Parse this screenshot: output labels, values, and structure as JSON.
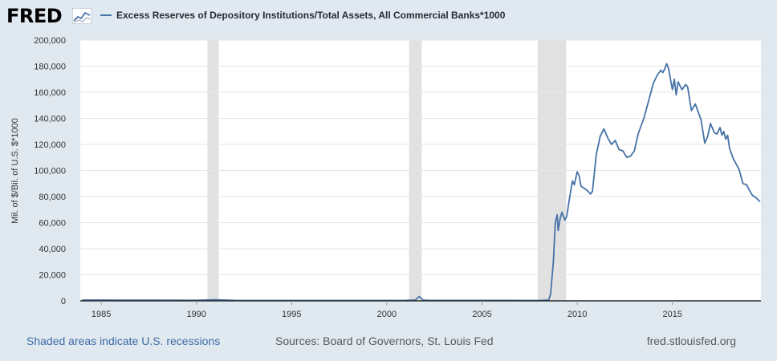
{
  "header": {
    "logo_text": "FRED",
    "series_title": "Excess Reserves of Depository Institutions/Total Assets, All Commercial Banks*1000"
  },
  "footer": {
    "recession_note": "Shaded areas indicate U.S. recessions",
    "sources": "Sources: Board of Governors, St. Louis Fed",
    "site": "fred.stlouisfed.org"
  },
  "colors": {
    "series": "#4572a7",
    "recession": "#e1e1e1",
    "background": "#e1e9f0",
    "plot": "#ffffff",
    "grid": "#e6e6e6"
  },
  "chart_data": {
    "type": "line",
    "ylabel": "Mil. of $/Bil. of U.S. $*1000",
    "xlim": [
      1983.9,
      2019.65
    ],
    "ylim": [
      0,
      200000
    ],
    "y_ticks": [
      0,
      20000,
      40000,
      60000,
      80000,
      100000,
      120000,
      140000,
      160000,
      180000,
      200000
    ],
    "y_tick_labels": [
      "0",
      "20,000",
      "40,000",
      "60,000",
      "80,000",
      "100,000",
      "120,000",
      "140,000",
      "160,000",
      "180,000",
      "200,000"
    ],
    "x_ticks": [
      1985,
      1990,
      1995,
      2000,
      2005,
      2010,
      2015
    ],
    "x_tick_labels": [
      "1985",
      "1990",
      "1995",
      "2000",
      "2005",
      "2010",
      "2015"
    ],
    "recessions": [
      [
        1990.58,
        1991.17
      ],
      [
        2001.17,
        2001.83
      ],
      [
        2007.92,
        2009.42
      ]
    ],
    "grid": "horizontal",
    "series": [
      {
        "x": [
          1984.0,
          1986.0,
          1988.0,
          1990.0,
          1991.0,
          1992.0,
          1995.0,
          1998.0,
          2001.0,
          2001.5,
          2001.7,
          2001.9,
          2002.2,
          2004.0,
          2006.0,
          2007.0,
          2008.0,
          2008.5,
          2008.6,
          2008.75,
          2008.85,
          2008.95,
          2009.0,
          2009.1,
          2009.2,
          2009.35,
          2009.45,
          2009.6,
          2009.75,
          2009.85,
          2010.0,
          2010.1,
          2010.2,
          2010.3,
          2010.5,
          2010.7,
          2010.8,
          2011.0,
          2011.2,
          2011.4,
          2011.6,
          2011.8,
          2012.0,
          2012.2,
          2012.4,
          2012.6,
          2012.8,
          2013.0,
          2013.2,
          2013.5,
          2013.8,
          2014.0,
          2014.2,
          2014.4,
          2014.5,
          2014.6,
          2014.7,
          2014.8,
          2014.9,
          2015.0,
          2015.1,
          2015.2,
          2015.3,
          2015.5,
          2015.7,
          2015.8,
          2016.0,
          2016.2,
          2016.4,
          2016.5,
          2016.6,
          2016.7,
          2016.85,
          2017.0,
          2017.2,
          2017.35,
          2017.5,
          2017.6,
          2017.7,
          2017.8,
          2017.9,
          2018.0,
          2018.2,
          2018.5,
          2018.7,
          2018.9,
          2019.0,
          2019.2,
          2019.4,
          2019.6
        ],
        "y": [
          600,
          550,
          500,
          450,
          800,
          350,
          300,
          300,
          350,
          600,
          3300,
          600,
          400,
          400,
          400,
          300,
          300,
          600,
          5000,
          30000,
          60000,
          66000,
          54000,
          63000,
          68000,
          62000,
          65000,
          79000,
          92000,
          89000,
          99000,
          96000,
          88000,
          87000,
          85000,
          82000,
          84000,
          112000,
          126000,
          132000,
          125000,
          120000,
          123000,
          116000,
          115000,
          110000,
          111000,
          115000,
          128000,
          140000,
          156000,
          167000,
          173000,
          177000,
          175000,
          178000,
          182000,
          178000,
          170000,
          162000,
          170000,
          158000,
          168000,
          162000,
          166000,
          164000,
          146000,
          151000,
          143000,
          139000,
          130000,
          121000,
          126000,
          136000,
          129000,
          128000,
          133000,
          127000,
          130000,
          124000,
          127000,
          117000,
          109000,
          101000,
          90000,
          89000,
          86000,
          81000,
          79000,
          76000
        ]
      }
    ]
  }
}
